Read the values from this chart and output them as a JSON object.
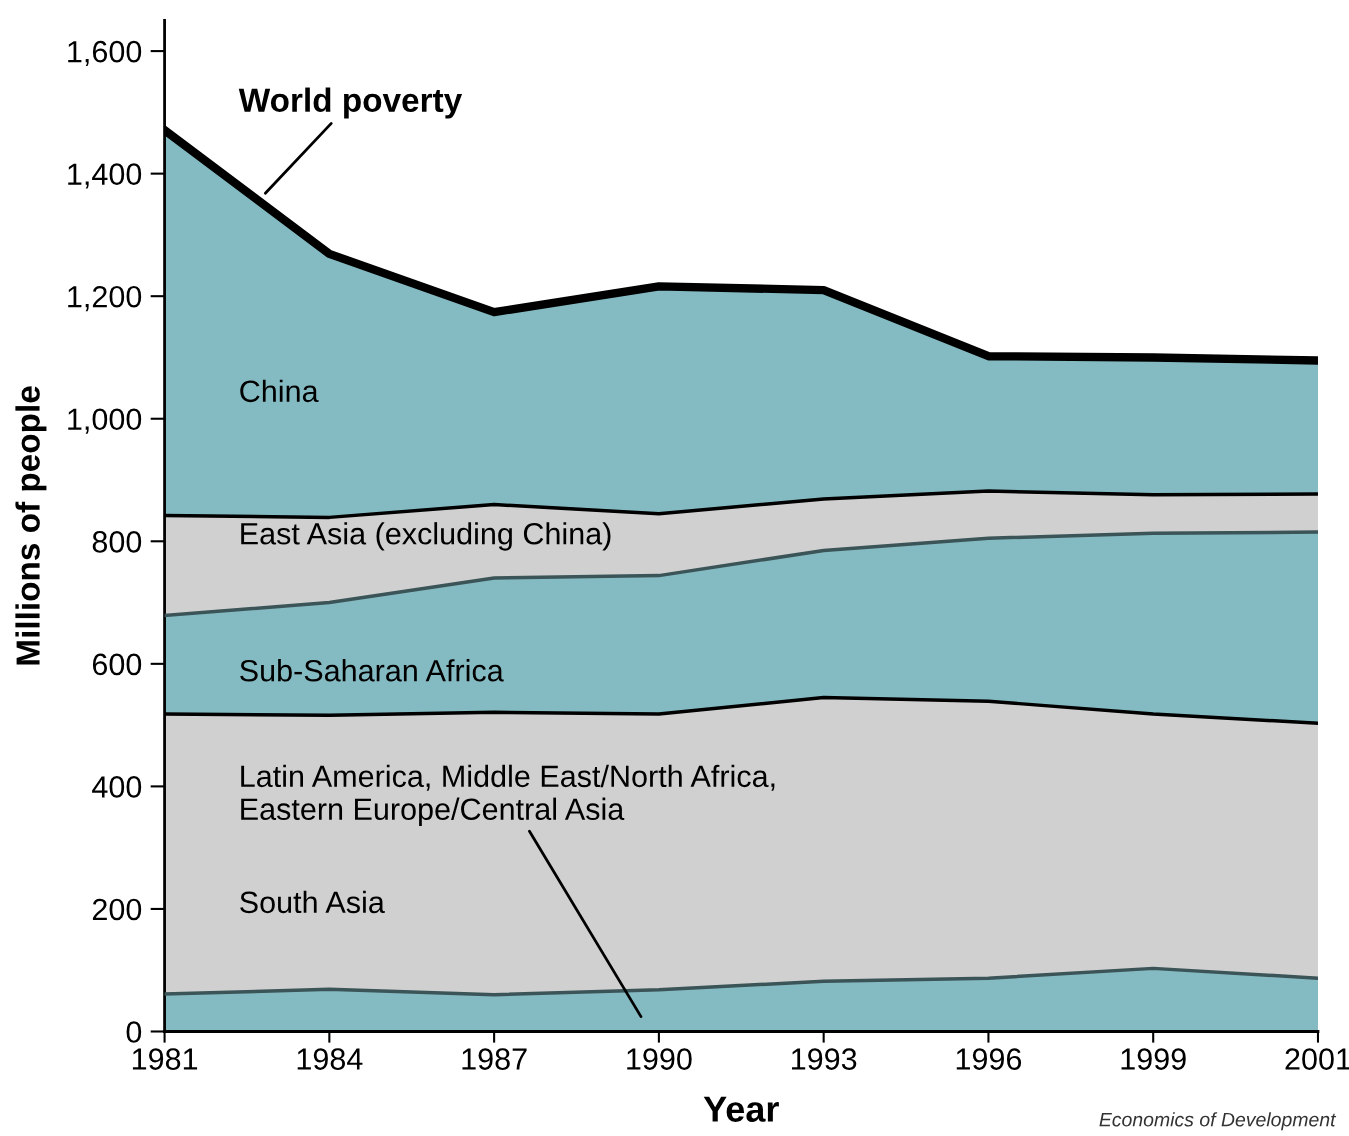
{
  "chart_data": {
    "type": "area",
    "stacked": true,
    "xlabel": "Year",
    "ylabel": "Millions of people",
    "categories": [
      "1981",
      "1984",
      "1987",
      "1990",
      "1993",
      "1996",
      "1999",
      "2001"
    ],
    "series": [
      {
        "name": "Latin America, Middle East/North Africa,\nEastern Europe/Central Asia",
        "color": "#84bac2",
        "values": [
          61,
          69,
          60,
          68,
          82,
          87,
          103,
          87
        ]
      },
      {
        "name": "South Asia",
        "color": "#d0d0d0",
        "values": [
          457,
          447,
          461,
          450,
          463,
          452,
          415,
          416
        ]
      },
      {
        "name": "Sub-Saharan Africa",
        "color": "#84bac2",
        "values": [
          161,
          184,
          219,
          226,
          240,
          266,
          295,
          312
        ]
      },
      {
        "name": "East Asia (excluding China)",
        "color": "#d0d0d0",
        "values": [
          163,
          139,
          120,
          101,
          84,
          77,
          63,
          62
        ]
      },
      {
        "name": "China",
        "color": "#84bac2",
        "values": [
          629,
          430,
          314,
          371,
          341,
          220,
          224,
          218
        ]
      }
    ],
    "ylim": [
      0,
      1650
    ],
    "yticks": [
      0,
      {
        "value": 200,
        "label": "200"
      },
      {
        "value": 400,
        "label": "400"
      },
      {
        "value": 600,
        "label": "600"
      },
      {
        "value": 800,
        "label": "800"
      },
      {
        "value": 1000,
        "label": "1,000"
      },
      {
        "value": 1200,
        "label": "1,200"
      },
      {
        "value": 1400,
        "label": "1,400"
      },
      {
        "value": 1600,
        "label": "1,600"
      }
    ],
    "annotations": [
      "World poverty",
      "Economics of Development"
    ],
    "grid": false
  }
}
